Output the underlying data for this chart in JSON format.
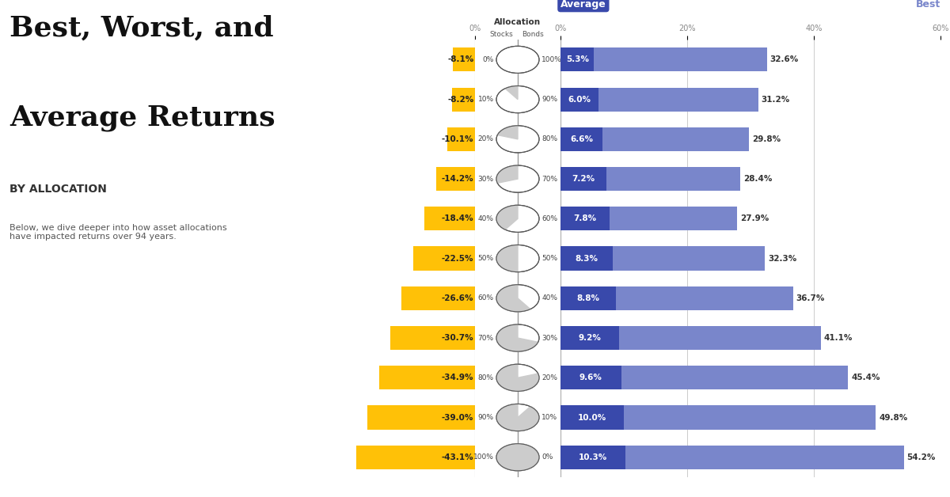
{
  "allocations": [
    "0%/100%",
    "10%/90%",
    "20%/80%",
    "30%/70%",
    "40%/60%",
    "50%/50%",
    "60%/40%",
    "70%/30%",
    "80%/20%",
    "90%/10%",
    "100%/0%"
  ],
  "stocks_pct": [
    0,
    10,
    20,
    30,
    40,
    50,
    60,
    70,
    80,
    90,
    100
  ],
  "bonds_pct": [
    100,
    90,
    80,
    70,
    60,
    50,
    40,
    30,
    20,
    10,
    0
  ],
  "worst": [
    -8.1,
    -8.2,
    -10.1,
    -14.2,
    -18.4,
    -22.5,
    -26.6,
    -30.7,
    -34.9,
    -39.0,
    -43.1
  ],
  "average": [
    5.3,
    6.0,
    6.6,
    7.2,
    7.8,
    8.3,
    8.8,
    9.2,
    9.6,
    10.0,
    10.3
  ],
  "best": [
    32.6,
    31.2,
    29.8,
    28.4,
    27.9,
    32.3,
    36.7,
    41.1,
    45.4,
    49.8,
    54.2
  ],
  "worst_color": "#FFC107",
  "average_color": "#3949AB",
  "best_color": "#7986CB",
  "bg_color": "#ffffff",
  "title_line1": "Best, Worst, and",
  "title_line2": "Average Returns",
  "subtitle": "BY ALLOCATION",
  "description": "Below, we dive deeper into how asset allocations\nhave impacted returns over 94 years.",
  "bar_height": 0.6
}
